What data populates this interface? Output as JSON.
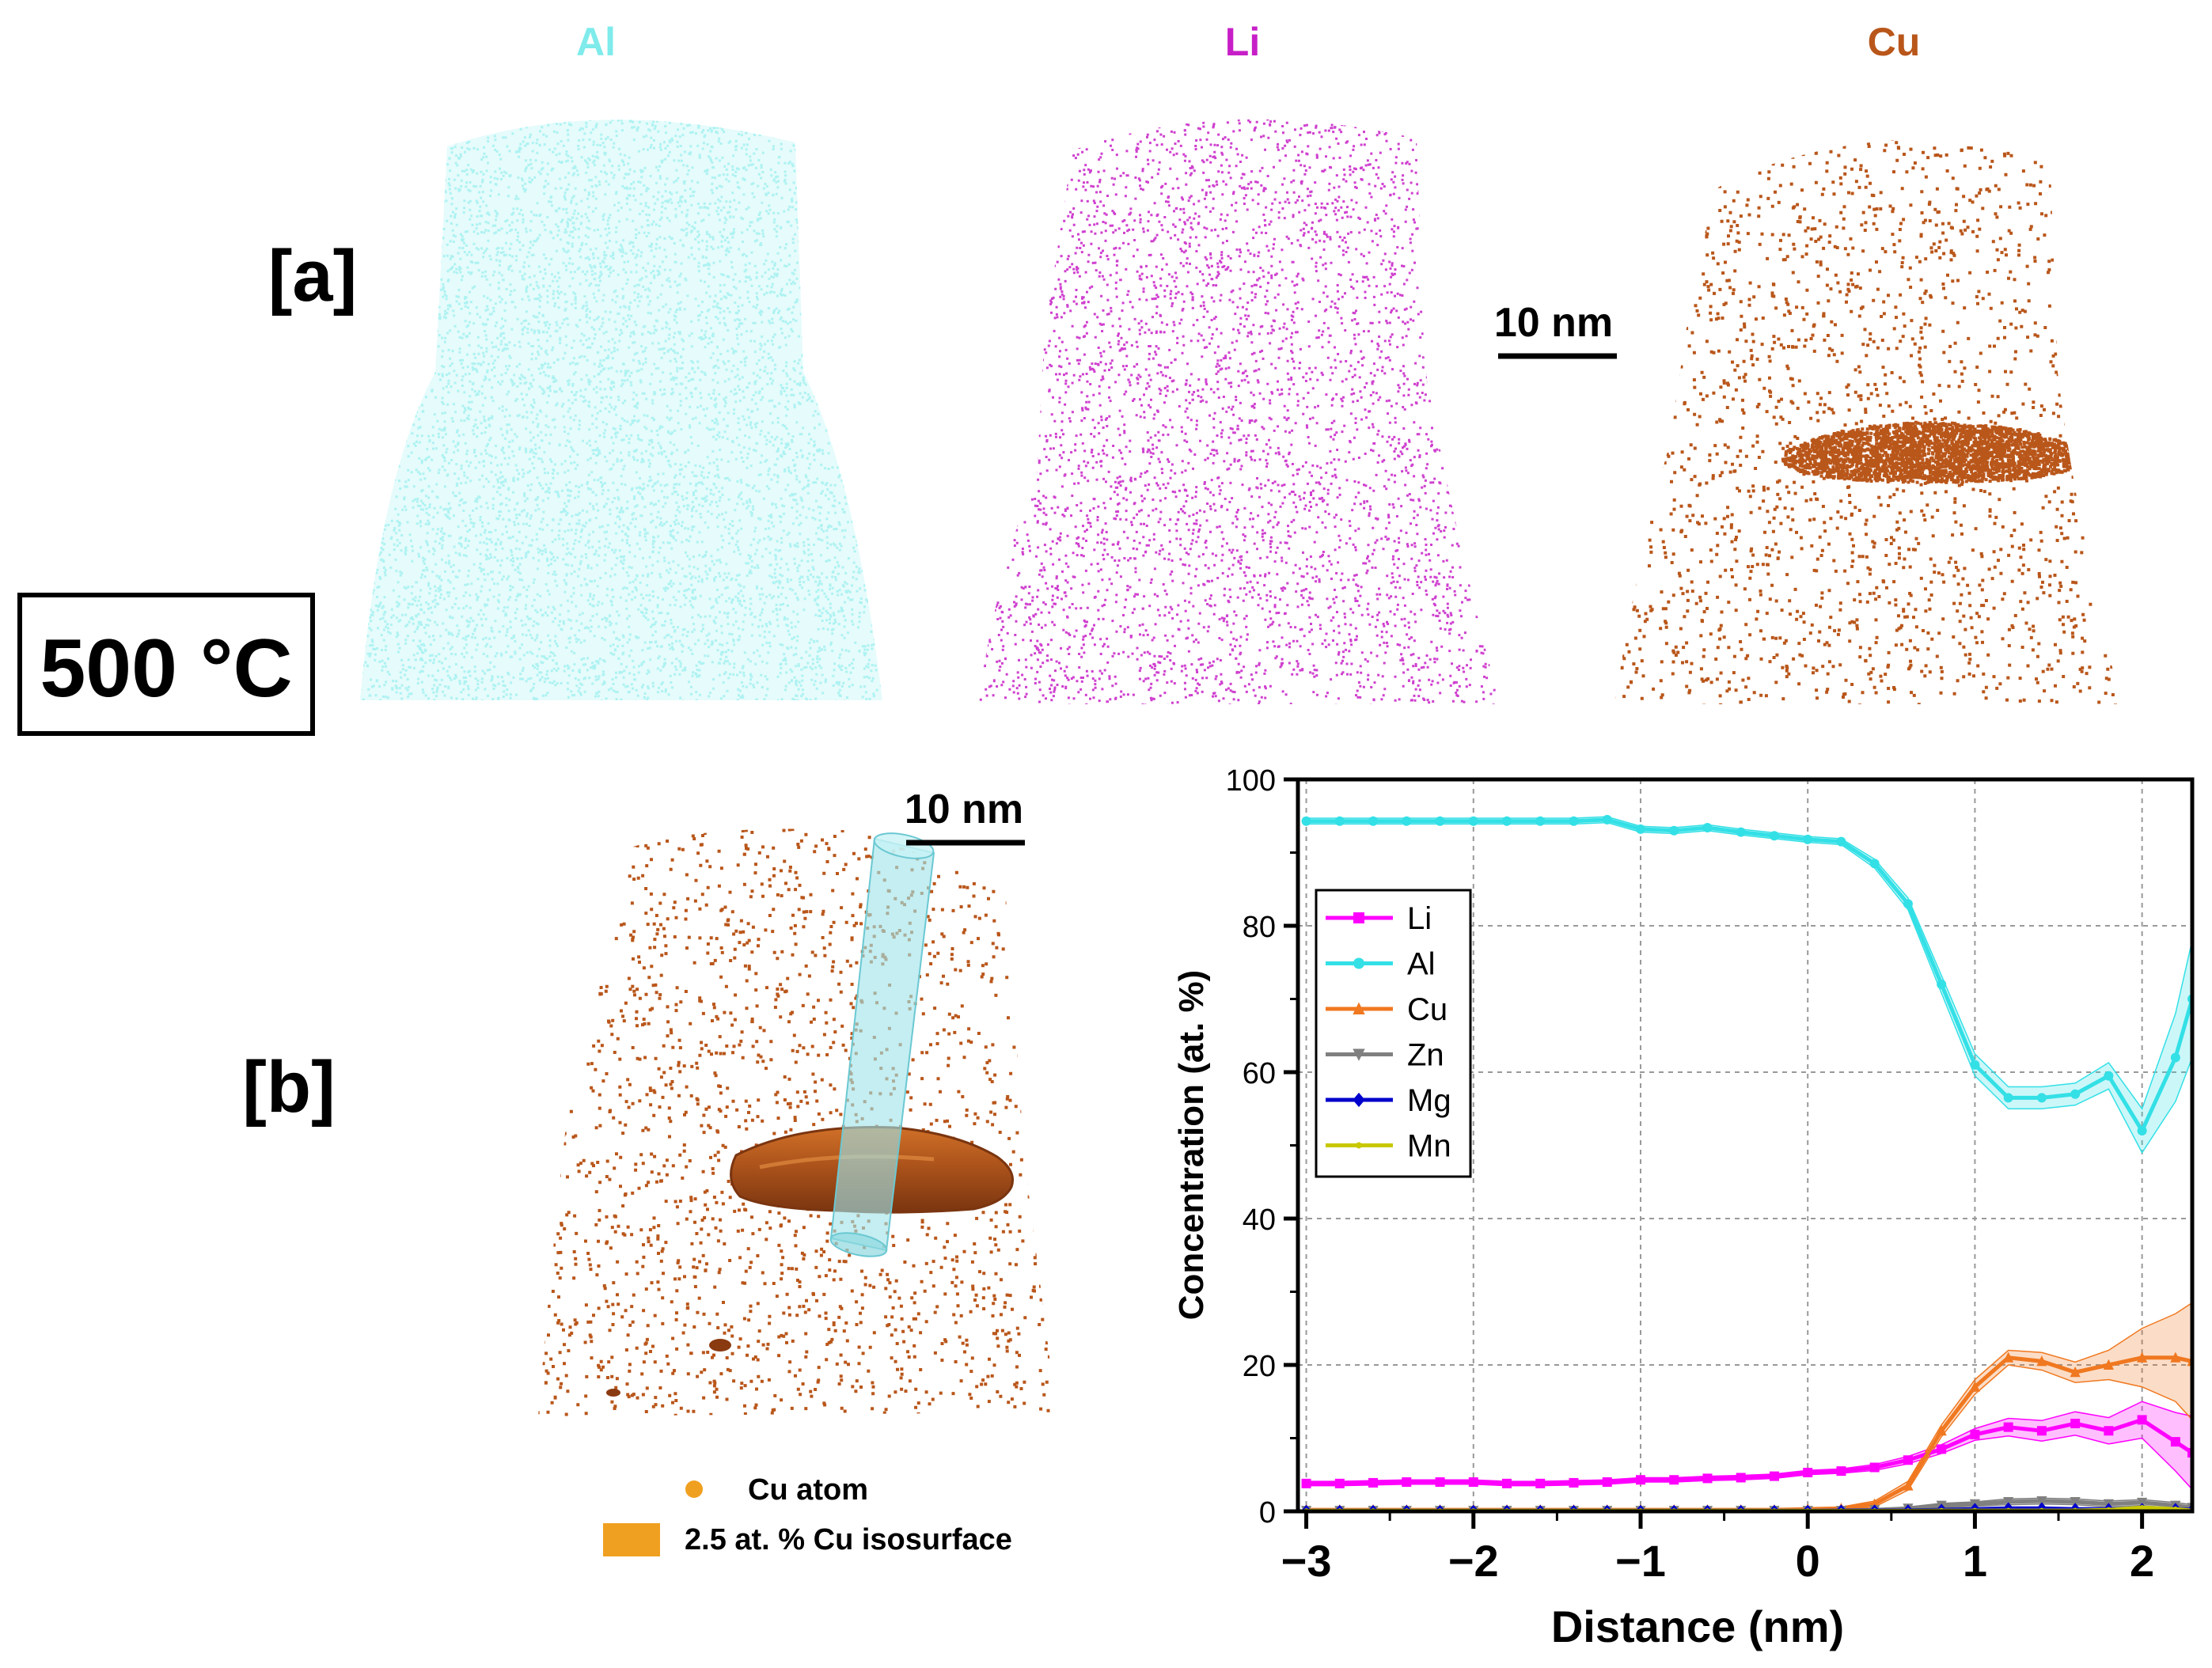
{
  "panels": {
    "a_label": "[a]",
    "b_label": "[b]",
    "temperature": "500 °C"
  },
  "atom_maps": [
    {
      "element": "Al",
      "color": "#7FEBEB"
    },
    {
      "element": "Li",
      "color": "#C71FC7"
    },
    {
      "element": "Cu",
      "color": "#B9561A"
    }
  ],
  "scale_bars": {
    "top": "10 nm",
    "bottom": "10 nm"
  },
  "legend_b": {
    "atom_label": "Cu atom",
    "isosurface_label": "2.5 at. % Cu isosurface",
    "atom_color": "#F0A020",
    "isosurface_color": "#F0A020"
  },
  "chart_data": {
    "type": "line",
    "xlabel": "Distance (nm)",
    "ylabel": "Concentration (at. %)",
    "xlim": [
      -3.05,
      2.3
    ],
    "ylim": [
      0,
      100
    ],
    "xticks": [
      -3,
      -2,
      -1,
      0,
      1,
      2
    ],
    "xtick_labels": [
      "−3",
      "−2",
      "−1",
      "0",
      "1",
      "2"
    ],
    "yticks": [
      0,
      20,
      40,
      60,
      80,
      100
    ],
    "grid": true,
    "legend_position": "upper-left",
    "x": [
      -3.0,
      -2.8,
      -2.6,
      -2.4,
      -2.2,
      -2.0,
      -1.8,
      -1.6,
      -1.4,
      -1.2,
      -1.0,
      -0.8,
      -0.6,
      -0.4,
      -0.2,
      0.0,
      0.2,
      0.4,
      0.6,
      0.8,
      1.0,
      1.2,
      1.4,
      1.6,
      1.8,
      2.0,
      2.2,
      2.3
    ],
    "series": [
      {
        "name": "Li",
        "color": "#FF00FF",
        "marker": "square",
        "values": [
          3.8,
          3.8,
          3.9,
          4.0,
          4.0,
          4.0,
          3.8,
          3.8,
          3.9,
          4.0,
          4.3,
          4.3,
          4.5,
          4.6,
          4.8,
          5.3,
          5.5,
          6.0,
          7.0,
          8.5,
          10.5,
          11.5,
          11.0,
          12.0,
          11.0,
          12.5,
          9.5,
          8.0
        ],
        "band": [
          0.3,
          0.3,
          0.3,
          0.3,
          0.3,
          0.3,
          0.3,
          0.3,
          0.3,
          0.3,
          0.3,
          0.3,
          0.3,
          0.3,
          0.3,
          0.3,
          0.3,
          0.4,
          0.5,
          0.6,
          0.8,
          1.2,
          1.4,
          1.6,
          1.8,
          2.5,
          4.0,
          5.0
        ]
      },
      {
        "name": "Al",
        "color": "#33E0E6",
        "marker": "circle",
        "values": [
          94.3,
          94.3,
          94.3,
          94.3,
          94.3,
          94.3,
          94.3,
          94.3,
          94.3,
          94.5,
          93.2,
          93.0,
          93.4,
          92.8,
          92.3,
          91.8,
          91.5,
          88.5,
          83.0,
          72.0,
          61.0,
          56.5,
          56.5,
          57.0,
          59.5,
          52.0,
          62.0,
          70.0
        ],
        "band": [
          0.4,
          0.4,
          0.4,
          0.4,
          0.4,
          0.4,
          0.4,
          0.4,
          0.4,
          0.4,
          0.4,
          0.4,
          0.4,
          0.4,
          0.4,
          0.4,
          0.4,
          0.6,
          0.8,
          1.2,
          1.5,
          1.5,
          1.5,
          1.5,
          1.8,
          3.0,
          6.0,
          8.0
        ]
      },
      {
        "name": "Cu",
        "color": "#F07820",
        "marker": "triangle",
        "values": [
          0.2,
          0.2,
          0.2,
          0.2,
          0.2,
          0.2,
          0.2,
          0.2,
          0.2,
          0.2,
          0.2,
          0.2,
          0.2,
          0.2,
          0.2,
          0.3,
          0.4,
          1.0,
          3.5,
          11.0,
          17.0,
          21.0,
          20.5,
          19.0,
          20.0,
          21.0,
          21.0,
          20.5
        ],
        "band": [
          0.1,
          0.1,
          0.1,
          0.1,
          0.1,
          0.1,
          0.1,
          0.1,
          0.1,
          0.1,
          0.1,
          0.1,
          0.1,
          0.1,
          0.1,
          0.1,
          0.2,
          0.4,
          0.6,
          0.8,
          1.0,
          1.0,
          1.2,
          1.4,
          2.0,
          4.0,
          6.0,
          8.0
        ]
      },
      {
        "name": "Zn",
        "color": "#808080",
        "marker": "triangle-down",
        "values": [
          0.1,
          0.1,
          0.1,
          0.1,
          0.1,
          0.1,
          0.1,
          0.1,
          0.1,
          0.1,
          0.1,
          0.1,
          0.1,
          0.1,
          0.1,
          0.1,
          0.1,
          0.2,
          0.4,
          0.8,
          1.0,
          1.3,
          1.4,
          1.3,
          1.0,
          1.2,
          0.8,
          0.5
        ],
        "band": [
          0.05,
          0.05,
          0.05,
          0.05,
          0.05,
          0.05,
          0.05,
          0.05,
          0.05,
          0.05,
          0.05,
          0.05,
          0.05,
          0.05,
          0.05,
          0.05,
          0.05,
          0.1,
          0.2,
          0.3,
          0.3,
          0.4,
          0.4,
          0.4,
          0.4,
          0.4,
          0.4,
          0.4
        ]
      },
      {
        "name": "Mg",
        "color": "#0000CC",
        "marker": "diamond",
        "values": [
          0.05,
          0.05,
          0.05,
          0.05,
          0.05,
          0.05,
          0.05,
          0.05,
          0.05,
          0.05,
          0.05,
          0.05,
          0.05,
          0.05,
          0.05,
          0.05,
          0.1,
          0.1,
          0.1,
          0.2,
          0.3,
          0.4,
          0.4,
          0.3,
          0.3,
          0.3,
          0.3,
          0.2
        ],
        "band": [
          0.05,
          0.05,
          0.05,
          0.05,
          0.05,
          0.05,
          0.05,
          0.05,
          0.05,
          0.05,
          0.05,
          0.05,
          0.05,
          0.05,
          0.05,
          0.05,
          0.05,
          0.05,
          0.05,
          0.1,
          0.1,
          0.1,
          0.1,
          0.1,
          0.1,
          0.1,
          0.1,
          0.1
        ]
      },
      {
        "name": "Mn",
        "color": "#C8C800",
        "marker": "star",
        "values": [
          0.05,
          0.05,
          0.05,
          0.05,
          0.05,
          0.05,
          0.05,
          0.05,
          0.05,
          0.05,
          0.05,
          0.05,
          0.05,
          0.05,
          0.05,
          0.05,
          0.05,
          0.05,
          0.05,
          0.1,
          0.1,
          0.1,
          0.1,
          0.1,
          0.2,
          0.5,
          0.3,
          0.1
        ],
        "band": [
          0.05,
          0.05,
          0.05,
          0.05,
          0.05,
          0.05,
          0.05,
          0.05,
          0.05,
          0.05,
          0.05,
          0.05,
          0.05,
          0.05,
          0.05,
          0.05,
          0.05,
          0.05,
          0.05,
          0.05,
          0.05,
          0.05,
          0.05,
          0.05,
          0.1,
          0.2,
          0.2,
          0.1
        ]
      }
    ]
  }
}
